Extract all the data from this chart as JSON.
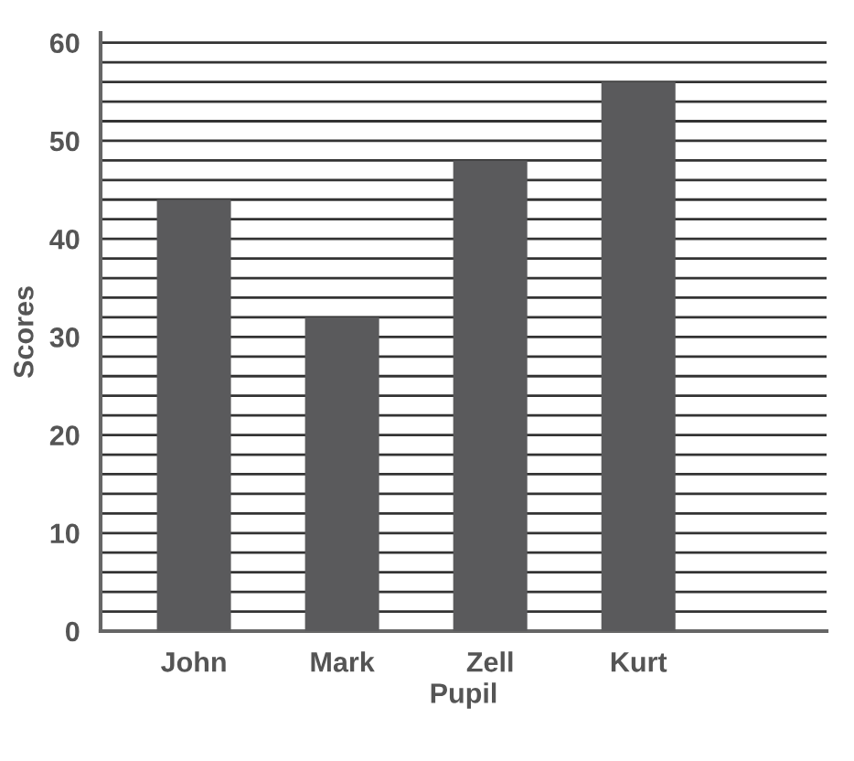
{
  "chart_data": {
    "type": "bar",
    "xlabel": "Pupil",
    "ylabel": "Scores",
    "categories": [
      "John",
      "Mark",
      "Zell",
      "Kurt"
    ],
    "values": [
      44,
      32,
      48,
      56
    ],
    "color": "#5a5a5c",
    "ylim": [
      0,
      61
    ],
    "yticks": [
      0,
      {
        "value": 2,
        "label": null
      },
      {
        "value": 4,
        "label": null
      },
      {
        "value": 6,
        "label": null
      },
      {
        "value": 8,
        "label": null
      },
      10,
      {
        "value": 12,
        "label": null
      },
      {
        "value": 14,
        "label": null
      },
      {
        "value": 16,
        "label": null
      },
      {
        "value": 18,
        "label": null
      },
      20,
      {
        "value": 22,
        "label": null
      },
      {
        "value": 24,
        "label": null
      },
      {
        "value": 26,
        "label": null
      },
      {
        "value": 28,
        "label": null
      },
      30,
      {
        "value": 32,
        "label": null
      },
      {
        "value": 34,
        "label": null
      },
      {
        "value": 36,
        "label": null
      },
      {
        "value": 38,
        "label": null
      },
      40,
      {
        "value": 42,
        "label": null
      },
      {
        "value": 44,
        "label": null
      },
      {
        "value": 46,
        "label": null
      },
      {
        "value": 48,
        "label": null
      },
      50,
      {
        "value": 52,
        "label": null
      },
      {
        "value": 54,
        "label": null
      },
      {
        "value": 56,
        "label": null
      },
      {
        "value": 58,
        "label": null
      },
      60
    ],
    "grid": "y"
  }
}
